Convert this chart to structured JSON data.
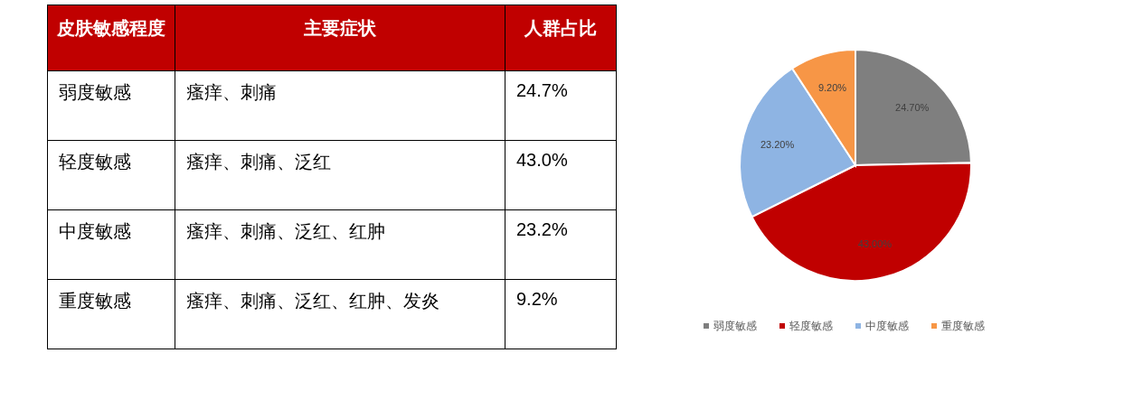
{
  "chart_data": [
    {
      "type": "other",
      "categories": [
        "皮肤敏感程度",
        "主要症状",
        "人群占比"
      ],
      "annotations": [
        "弱度敏感",
        "瘙痒、刺痛",
        "24.7%",
        "轻度敏感",
        "瘙痒、刺痛、泛红",
        "43.0%",
        "中度敏感",
        "瘙痒、刺痛、泛红、红肿",
        "23.2%",
        "重度敏感",
        "瘙痒、刺痛、泛红、红肿、发炎",
        "9.2%"
      ]
    },
    {
      "type": "pie",
      "categories": [
        "弱度敏感",
        "轻度敏感",
        "中度敏感",
        "重度敏感"
      ],
      "values": [
        24.7,
        43.0,
        23.2,
        9.2
      ],
      "value_labels": [
        "24.70%",
        "43.00%",
        "23.20%",
        "9.20%"
      ],
      "colors": [
        "#7f7f7f",
        "#c00000",
        "#8eb4e3",
        "#f79646"
      ],
      "legend": "bottom"
    }
  ]
}
